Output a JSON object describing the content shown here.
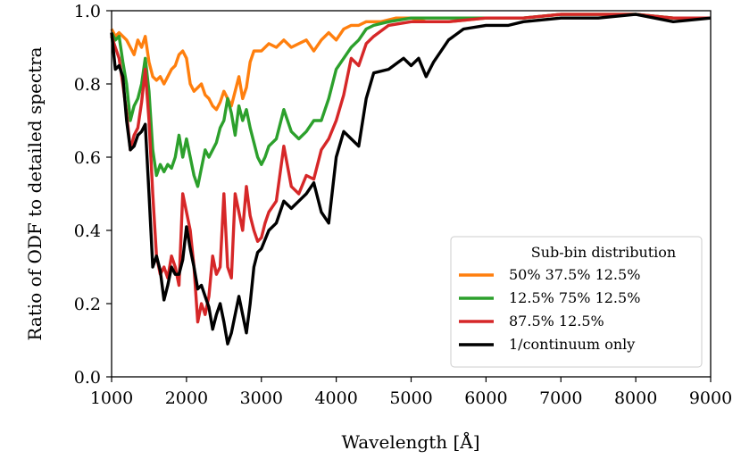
{
  "chart_data": {
    "type": "line",
    "title": "",
    "xlabel": "Wavelength [Å]",
    "ylabel": "Ratio of ODF to detailed spectra",
    "xlim": [
      1000,
      9000
    ],
    "ylim": [
      0.0,
      1.0
    ],
    "xticks": [
      1000,
      2000,
      3000,
      4000,
      5000,
      6000,
      7000,
      8000,
      9000
    ],
    "xtick_labels": [
      "1000",
      "2000",
      "3000",
      "4000",
      "5000",
      "6000",
      "7000",
      "8000",
      "9000"
    ],
    "yticks": [
      0.0,
      0.2,
      0.4,
      0.6,
      0.8,
      1.0
    ],
    "ytick_labels": [
      "0.0",
      "0.2",
      "0.4",
      "0.6",
      "0.8",
      "1.0"
    ],
    "grid": false,
    "legend": {
      "title": "Sub-bin distribution",
      "placement": "lower-right"
    },
    "series": [
      {
        "name": "50% 37.5% 12.5%",
        "color": "#ff7f0e",
        "x": [
          1000,
          1050,
          1100,
          1200,
          1250,
          1300,
          1350,
          1400,
          1450,
          1500,
          1550,
          1600,
          1650,
          1700,
          1750,
          1800,
          1850,
          1900,
          1950,
          2000,
          2050,
          2100,
          2150,
          2200,
          2250,
          2300,
          2350,
          2400,
          2450,
          2500,
          2550,
          2600,
          2650,
          2700,
          2750,
          2800,
          2850,
          2900,
          3000,
          3100,
          3200,
          3300,
          3400,
          3500,
          3600,
          3700,
          3800,
          3900,
          4000,
          4100,
          4200,
          4300,
          4400,
          4600,
          4800,
          5000,
          5200,
          5500,
          6000,
          6500,
          7000,
          7500,
          8000,
          8500,
          9000
        ],
        "values": [
          0.95,
          0.93,
          0.94,
          0.92,
          0.9,
          0.88,
          0.92,
          0.9,
          0.93,
          0.86,
          0.82,
          0.81,
          0.82,
          0.8,
          0.82,
          0.84,
          0.85,
          0.88,
          0.89,
          0.87,
          0.8,
          0.78,
          0.79,
          0.8,
          0.77,
          0.76,
          0.74,
          0.73,
          0.75,
          0.78,
          0.76,
          0.74,
          0.78,
          0.82,
          0.76,
          0.79,
          0.86,
          0.89,
          0.89,
          0.91,
          0.9,
          0.92,
          0.9,
          0.91,
          0.92,
          0.89,
          0.92,
          0.94,
          0.92,
          0.95,
          0.96,
          0.96,
          0.97,
          0.97,
          0.98,
          0.98,
          0.97,
          0.97,
          0.98,
          0.98,
          0.99,
          0.99,
          0.99,
          0.98,
          0.98
        ]
      },
      {
        "name": "12.5% 75% 12.5%",
        "color": "#2ca02c",
        "x": [
          1000,
          1050,
          1100,
          1150,
          1200,
          1250,
          1300,
          1350,
          1400,
          1450,
          1500,
          1550,
          1600,
          1650,
          1700,
          1750,
          1800,
          1850,
          1900,
          1950,
          2000,
          2050,
          2100,
          2150,
          2200,
          2250,
          2300,
          2350,
          2400,
          2450,
          2500,
          2550,
          2600,
          2650,
          2700,
          2750,
          2800,
          2850,
          2900,
          2950,
          3000,
          3050,
          3100,
          3200,
          3300,
          3400,
          3500,
          3600,
          3700,
          3800,
          3900,
          4000,
          4100,
          4200,
          4300,
          4400,
          4500,
          4700,
          5000,
          5500,
          6000,
          6500,
          7000,
          7500,
          8000,
          8500,
          9000
        ],
        "values": [
          0.94,
          0.92,
          0.93,
          0.86,
          0.8,
          0.7,
          0.74,
          0.76,
          0.8,
          0.87,
          0.78,
          0.62,
          0.55,
          0.58,
          0.56,
          0.58,
          0.57,
          0.6,
          0.66,
          0.6,
          0.65,
          0.6,
          0.55,
          0.52,
          0.57,
          0.62,
          0.6,
          0.62,
          0.64,
          0.68,
          0.7,
          0.76,
          0.72,
          0.66,
          0.74,
          0.7,
          0.73,
          0.68,
          0.64,
          0.6,
          0.58,
          0.6,
          0.63,
          0.65,
          0.73,
          0.67,
          0.65,
          0.67,
          0.7,
          0.7,
          0.76,
          0.84,
          0.87,
          0.9,
          0.92,
          0.95,
          0.96,
          0.97,
          0.98,
          0.98,
          0.98,
          0.98,
          0.99,
          0.99,
          0.99,
          0.98,
          0.98
        ]
      },
      {
        "name": "87.5% 12.5%",
        "color": "#d62728",
        "x": [
          1000,
          1050,
          1100,
          1150,
          1200,
          1250,
          1300,
          1350,
          1400,
          1450,
          1500,
          1550,
          1600,
          1650,
          1700,
          1750,
          1800,
          1850,
          1900,
          1950,
          2000,
          2050,
          2100,
          2150,
          2200,
          2250,
          2300,
          2350,
          2400,
          2450,
          2500,
          2550,
          2600,
          2650,
          2700,
          2750,
          2800,
          2850,
          2900,
          2950,
          3000,
          3050,
          3100,
          3200,
          3300,
          3400,
          3500,
          3600,
          3700,
          3800,
          3900,
          4000,
          4100,
          4200,
          4300,
          4400,
          4500,
          4700,
          5000,
          5500,
          6000,
          6500,
          7000,
          7500,
          8000,
          8500,
          9000
        ],
        "values": [
          0.93,
          0.9,
          0.87,
          0.8,
          0.72,
          0.62,
          0.66,
          0.68,
          0.75,
          0.84,
          0.7,
          0.5,
          0.33,
          0.28,
          0.3,
          0.27,
          0.33,
          0.3,
          0.25,
          0.5,
          0.45,
          0.4,
          0.3,
          0.15,
          0.2,
          0.17,
          0.22,
          0.33,
          0.28,
          0.3,
          0.5,
          0.3,
          0.27,
          0.5,
          0.45,
          0.4,
          0.52,
          0.44,
          0.4,
          0.37,
          0.38,
          0.42,
          0.45,
          0.48,
          0.63,
          0.52,
          0.5,
          0.55,
          0.54,
          0.62,
          0.65,
          0.7,
          0.77,
          0.87,
          0.85,
          0.91,
          0.93,
          0.96,
          0.97,
          0.97,
          0.98,
          0.98,
          0.99,
          0.99,
          0.99,
          0.98,
          0.98
        ]
      },
      {
        "name": "1/continuum only",
        "color": "#000000",
        "x": [
          1000,
          1050,
          1100,
          1150,
          1200,
          1250,
          1300,
          1350,
          1400,
          1450,
          1500,
          1550,
          1600,
          1650,
          1700,
          1750,
          1800,
          1850,
          1900,
          1950,
          2000,
          2050,
          2100,
          2150,
          2200,
          2250,
          2300,
          2350,
          2400,
          2450,
          2500,
          2550,
          2600,
          2650,
          2700,
          2750,
          2800,
          2850,
          2900,
          2950,
          3000,
          3100,
          3200,
          3300,
          3400,
          3500,
          3600,
          3700,
          3800,
          3900,
          4000,
          4100,
          4200,
          4300,
          4400,
          4500,
          4700,
          4900,
          5000,
          5100,
          5200,
          5300,
          5500,
          5700,
          6000,
          6300,
          6500,
          7000,
          7500,
          8000,
          8500,
          9000
        ],
        "values": [
          0.94,
          0.84,
          0.85,
          0.82,
          0.7,
          0.62,
          0.63,
          0.66,
          0.67,
          0.69,
          0.5,
          0.3,
          0.33,
          0.29,
          0.21,
          0.25,
          0.3,
          0.28,
          0.28,
          0.32,
          0.41,
          0.35,
          0.3,
          0.24,
          0.25,
          0.22,
          0.19,
          0.13,
          0.17,
          0.2,
          0.15,
          0.09,
          0.12,
          0.17,
          0.22,
          0.17,
          0.12,
          0.2,
          0.3,
          0.34,
          0.35,
          0.4,
          0.42,
          0.48,
          0.46,
          0.48,
          0.5,
          0.53,
          0.45,
          0.42,
          0.6,
          0.67,
          0.65,
          0.63,
          0.76,
          0.83,
          0.84,
          0.87,
          0.85,
          0.87,
          0.82,
          0.86,
          0.92,
          0.95,
          0.96,
          0.96,
          0.97,
          0.98,
          0.98,
          0.99,
          0.97,
          0.98
        ]
      }
    ]
  }
}
